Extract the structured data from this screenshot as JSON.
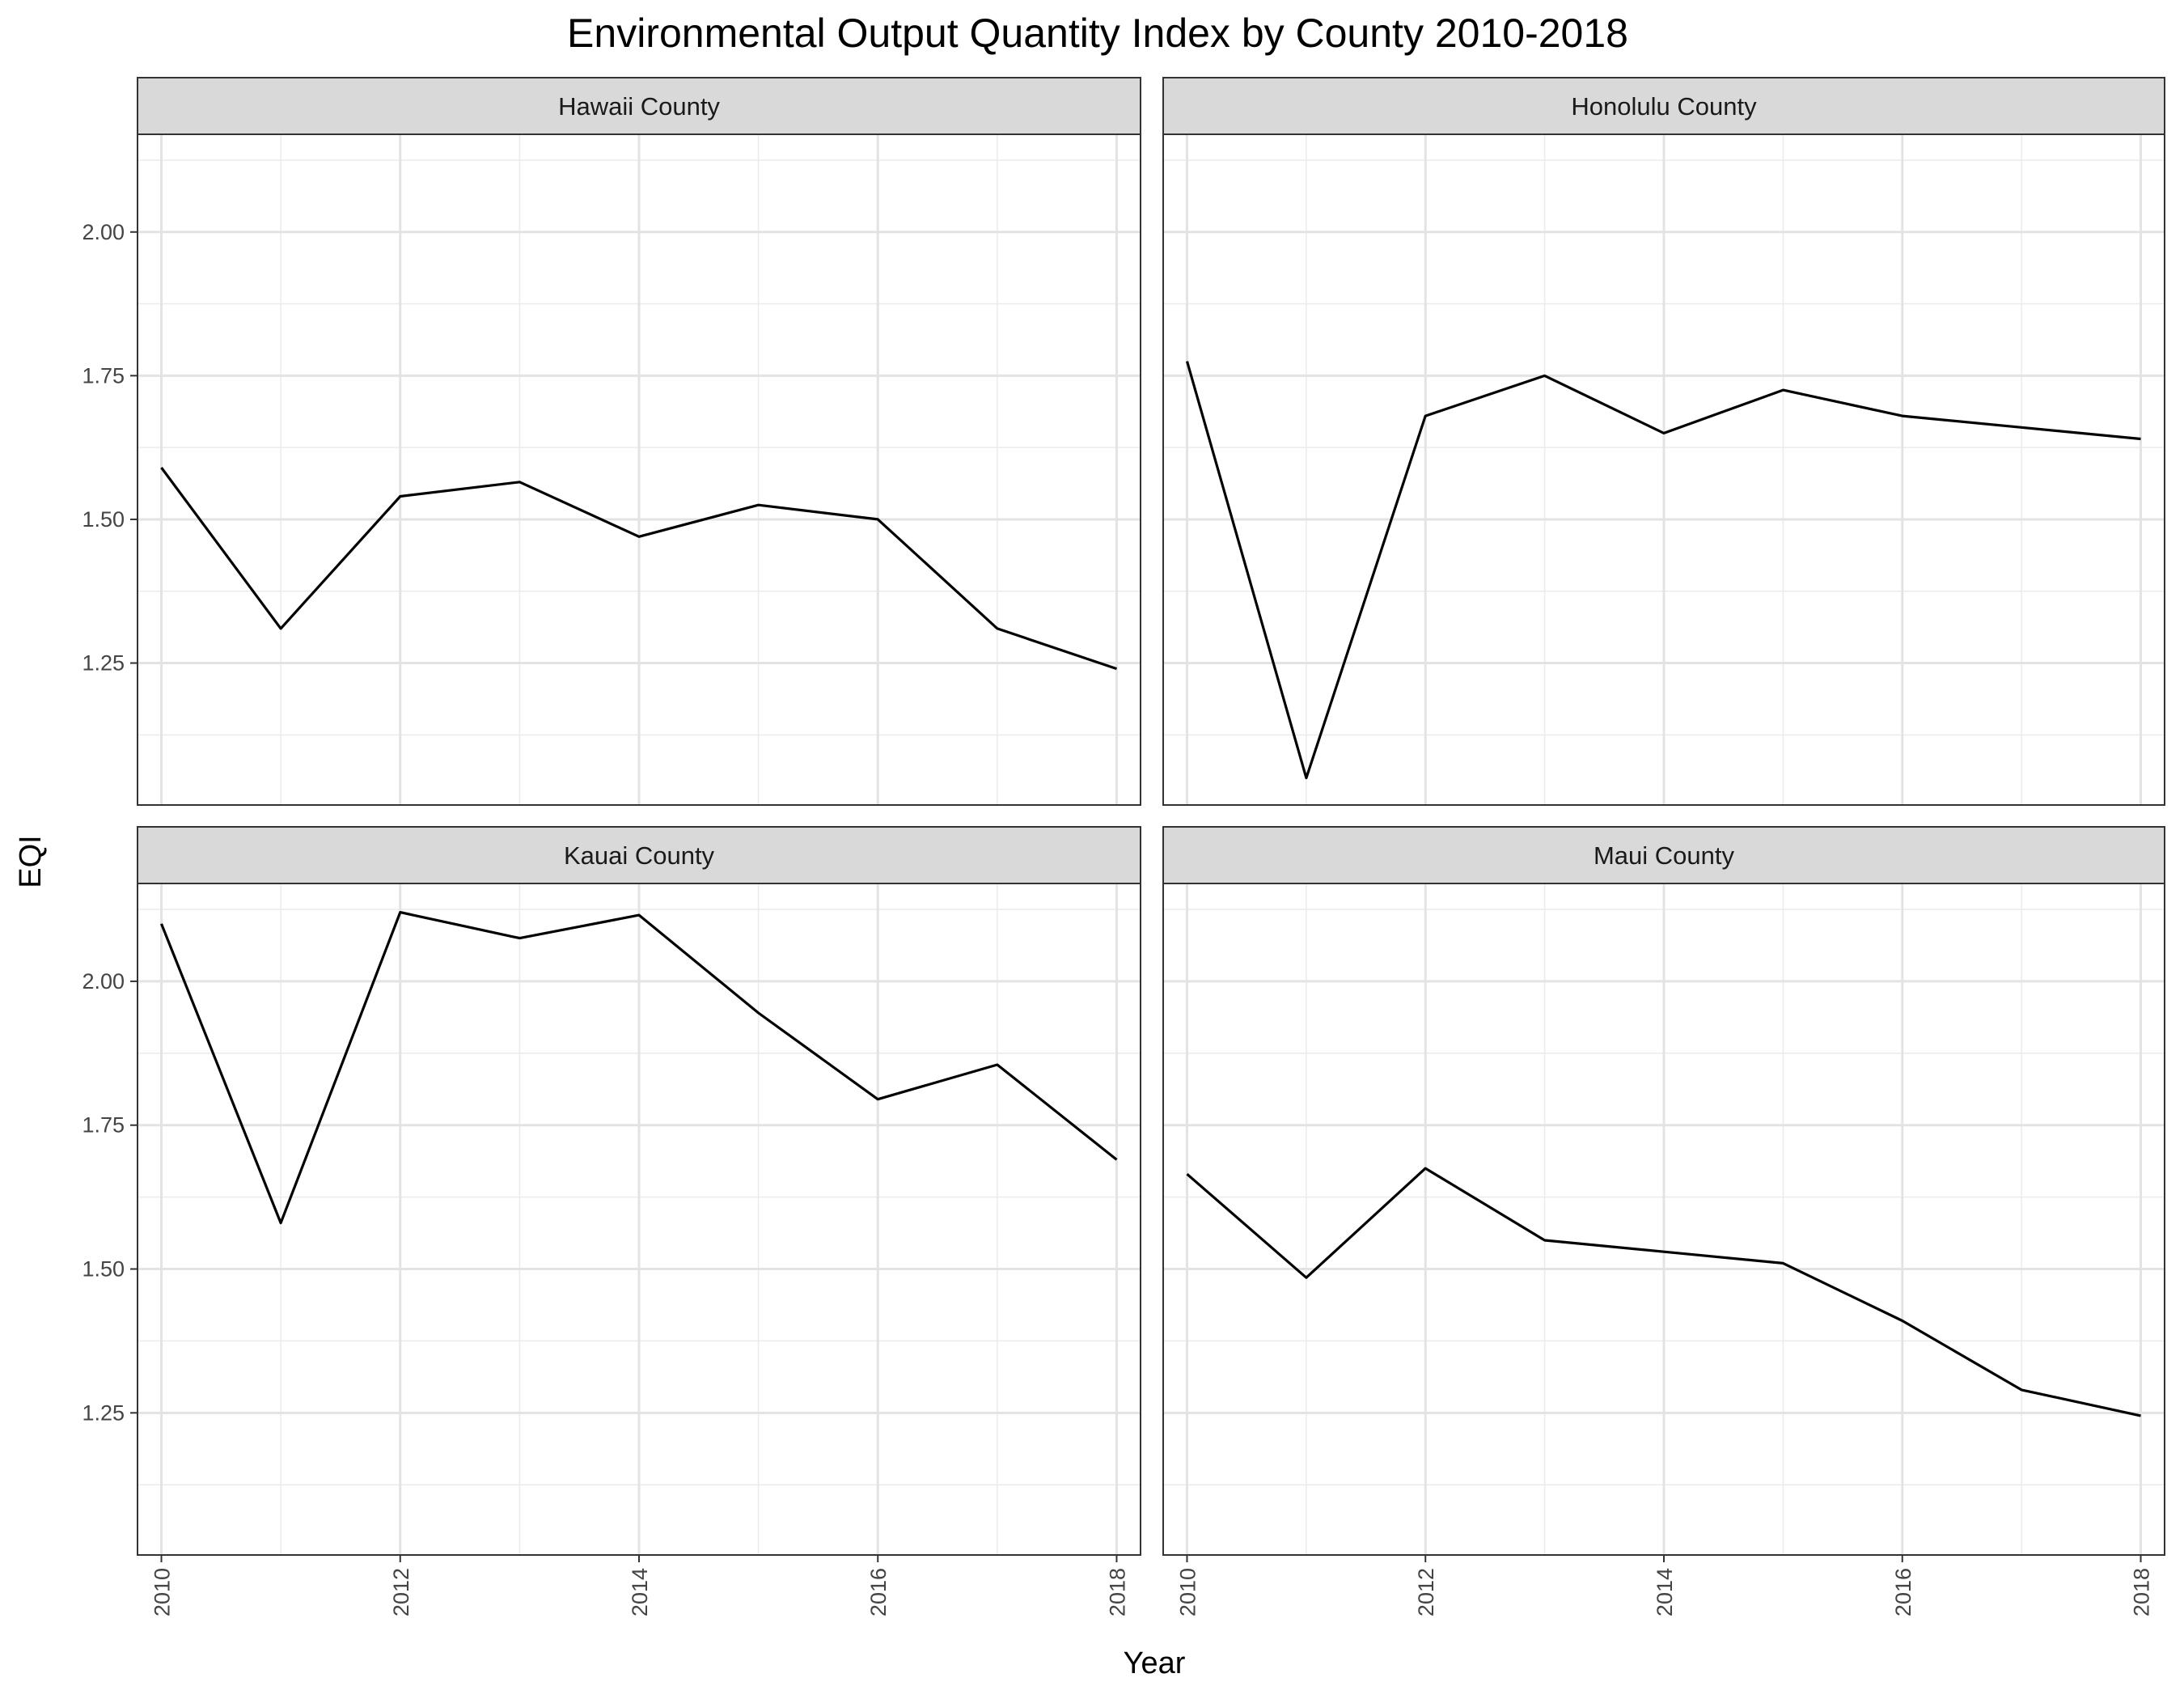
{
  "chart_data": {
    "type": "line",
    "title": "Environmental Output Quantity Index by County 2010-2018",
    "xlabel": "Year",
    "ylabel": "EQI",
    "x": [
      2010,
      2011,
      2012,
      2013,
      2014,
      2015,
      2016,
      2017,
      2018
    ],
    "xlim": [
      2009.8,
      2018.2
    ],
    "ylim": [
      1.003,
      2.17
    ],
    "x_ticks": [
      "2010",
      "2012",
      "2014",
      "2016",
      "2018"
    ],
    "y_ticks": [
      "1.25",
      "1.50",
      "1.75",
      "2.00"
    ],
    "grid": true,
    "line_color": "#000000",
    "strip_color": "#d9d9d9",
    "panels": [
      {
        "name": "Hawaii County",
        "values": [
          1.59,
          1.31,
          1.54,
          1.565,
          1.47,
          1.525,
          1.5,
          1.31,
          1.24
        ]
      },
      {
        "name": "Honolulu County",
        "values": [
          1.775,
          1.05,
          1.68,
          1.75,
          1.65,
          1.725,
          1.68,
          1.66,
          1.64
        ]
      },
      {
        "name": "Kauai County",
        "values": [
          2.1,
          1.58,
          2.12,
          2.075,
          2.115,
          1.945,
          1.795,
          1.855,
          1.69
        ]
      },
      {
        "name": "Maui County",
        "values": [
          1.665,
          1.485,
          1.675,
          1.55,
          1.53,
          1.51,
          1.41,
          1.29,
          1.245
        ]
      }
    ]
  }
}
